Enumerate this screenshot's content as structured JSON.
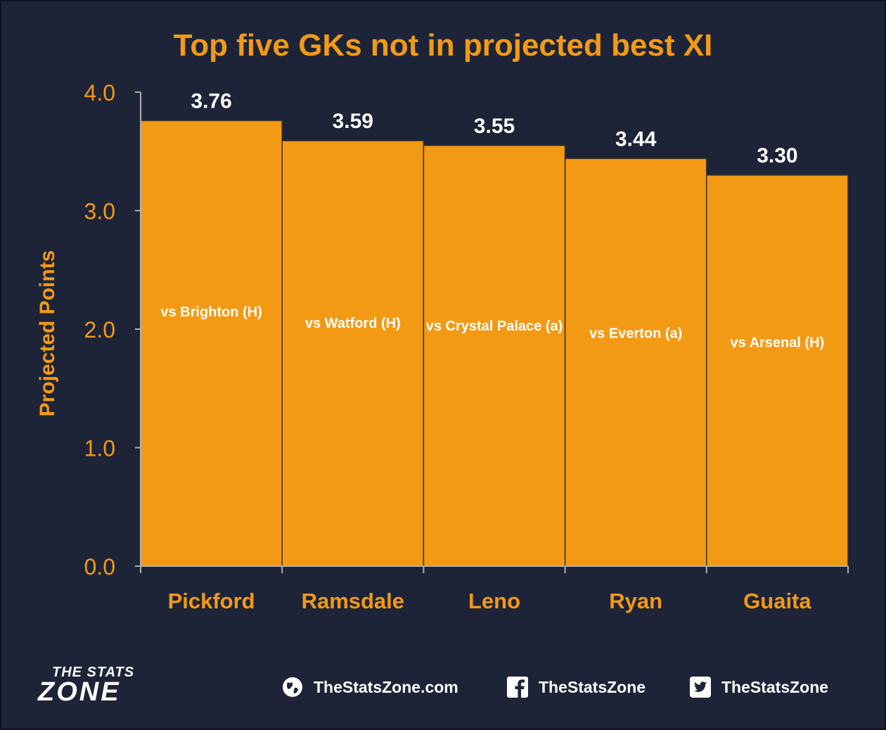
{
  "chart_data": {
    "type": "bar",
    "title": "Top five GKs not in projected best XI",
    "ylabel": "Projected Points",
    "xlabel": "",
    "ylim": [
      0,
      4.0
    ],
    "yticks": [
      "0.0",
      "1.0",
      "2.0",
      "3.0",
      "4.0"
    ],
    "categories": [
      "Pickford",
      "Ramsdale",
      "Leno",
      "Ryan",
      "Guaita"
    ],
    "values": [
      3.76,
      3.59,
      3.55,
      3.44,
      3.3
    ],
    "value_labels": [
      "3.76",
      "3.59",
      "3.55",
      "3.44",
      "3.30"
    ],
    "annotations": [
      "vs Brighton (H)",
      "vs Watford (H)",
      "vs Crystal Palace (a)",
      "vs Everton (a)",
      "vs Arsenal (H)"
    ],
    "bar_color": "#f39a14",
    "grid": false
  },
  "footer": {
    "logo_top": "THE STATS",
    "logo_bottom": "ZONE",
    "website": "TheStatsZone.com",
    "facebook": "TheStatsZone",
    "twitter": "TheStatsZone"
  },
  "colors": {
    "background": "#1d2438",
    "accent": "#f39a14",
    "text": "#ffffff"
  }
}
